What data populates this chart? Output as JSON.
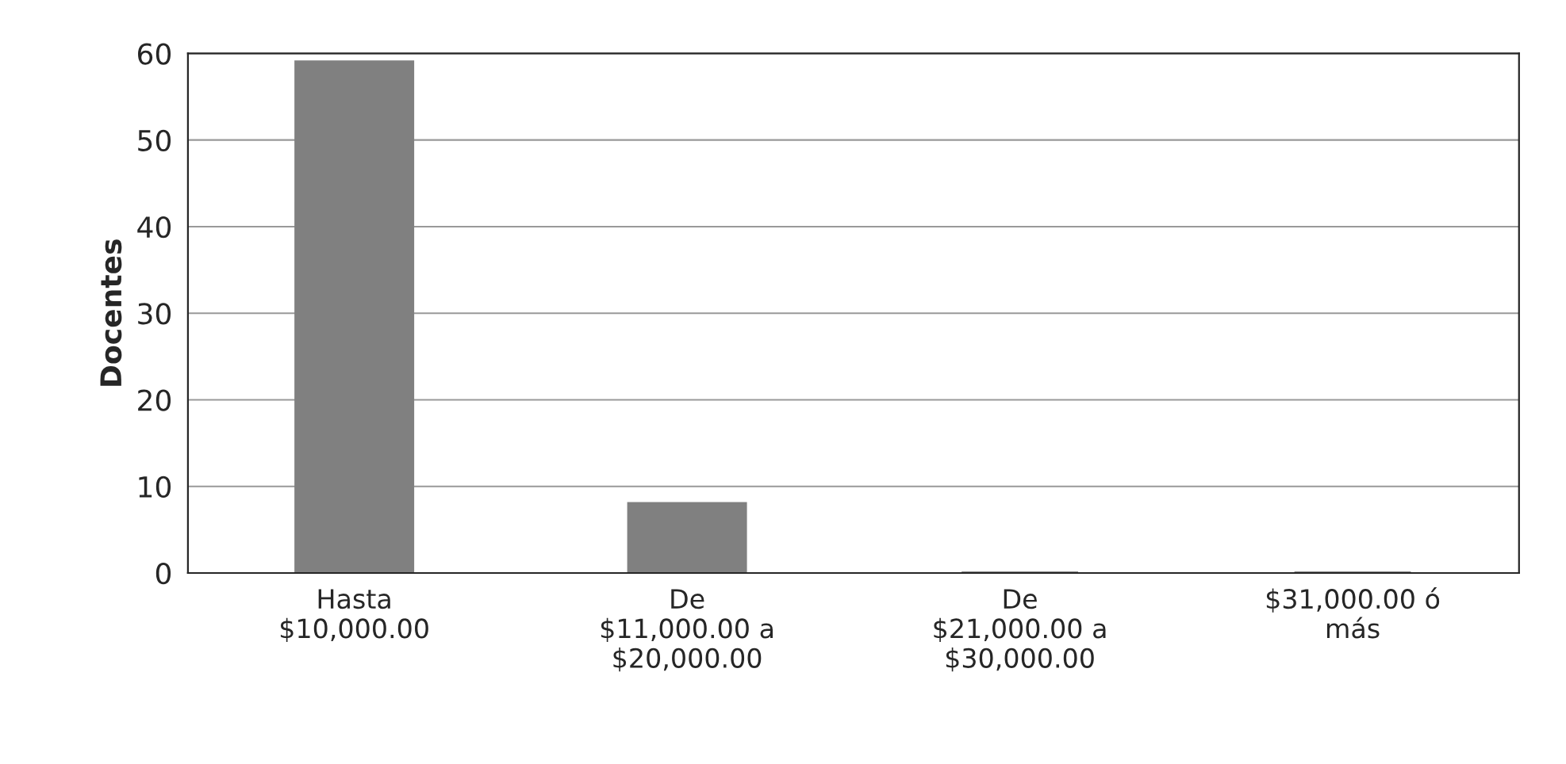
{
  "chart_data": {
    "type": "bar",
    "ylabel": "Docentes",
    "categories": [
      "Hasta\n$10,000.00",
      "De\n$11,000.00 a\n$20,000.00",
      "De\n$21,000.00 a\n$30,000.00",
      "$31,000.00 ó\nmás"
    ],
    "values": [
      59,
      8,
      0,
      0
    ],
    "color": "#808080",
    "ylim": [
      0,
      60
    ],
    "yticks": [
      0,
      10,
      20,
      30,
      40,
      50,
      60
    ],
    "grid": "y"
  }
}
